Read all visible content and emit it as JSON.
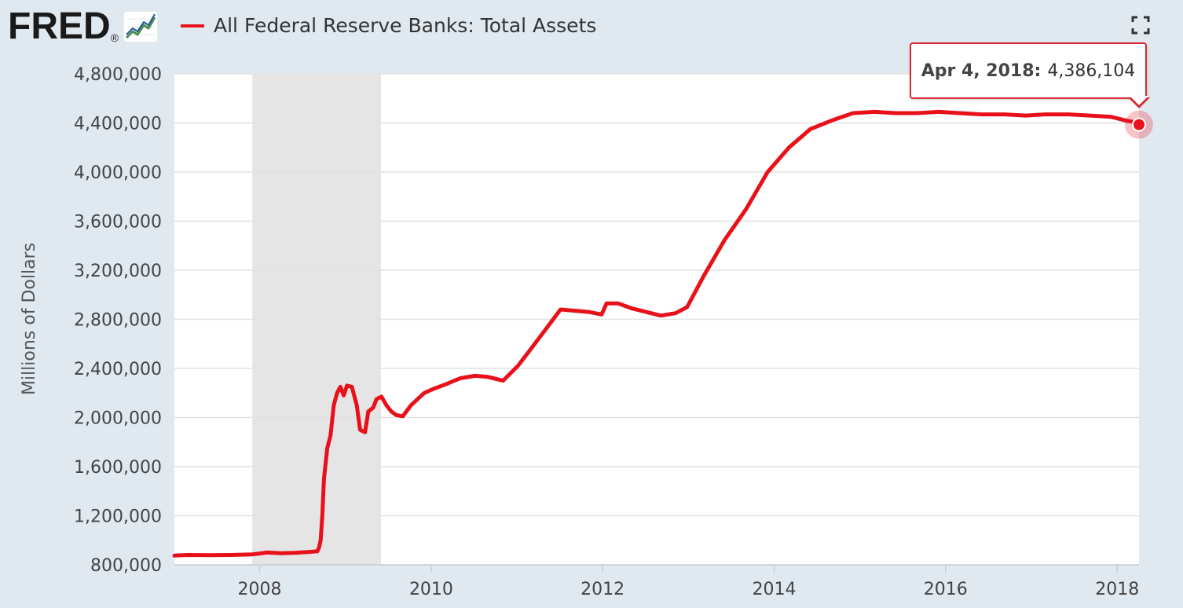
{
  "header": {
    "logo_text": "FRED",
    "logo_registered": "®",
    "legend_label": "All Federal Reserve Banks: Total Assets"
  },
  "tooltip": {
    "date": "Apr 4, 2018:",
    "value": "4,386,104"
  },
  "colors": {
    "series": "#e8111a",
    "recession": "#e5e5e5",
    "background": "#e1e9f0",
    "plot_bg": "#ffffff",
    "grid": "#e2e2e2"
  },
  "chart_data": {
    "type": "line",
    "ylabel": "Millions of Dollars",
    "ylim": [
      800000,
      4800000
    ],
    "yticks": [
      800000,
      1200000,
      1600000,
      2000000,
      2400000,
      2800000,
      3200000,
      3600000,
      4000000,
      4400000,
      4800000
    ],
    "ytick_labels": [
      "800,000",
      "1,200,000",
      "1,600,000",
      "2,000,000",
      "2,400,000",
      "2,800,000",
      "3,200,000",
      "3,600,000",
      "4,000,000",
      "4,400,000",
      "4,800,000"
    ],
    "xlim": [
      "2007-01-03",
      "2018-04-04"
    ],
    "xticks": [
      "2008-01-01",
      "2010-01-01",
      "2012-01-01",
      "2014-01-01",
      "2016-01-01",
      "2018-01-01"
    ],
    "xtick_labels": [
      "2008",
      "2010",
      "2012",
      "2014",
      "2016",
      "2018"
    ],
    "grid": true,
    "recessions": [
      {
        "start": "2007-12-01",
        "end": "2009-06-01"
      }
    ],
    "series": [
      {
        "name": "All Federal Reserve Banks: Total Assets",
        "points": [
          [
            "2007-01-03",
            875000
          ],
          [
            "2007-03-01",
            880000
          ],
          [
            "2007-06-01",
            878000
          ],
          [
            "2007-09-01",
            880000
          ],
          [
            "2007-12-01",
            885000
          ],
          [
            "2008-01-01",
            892000
          ],
          [
            "2008-02-01",
            900000
          ],
          [
            "2008-04-01",
            895000
          ],
          [
            "2008-06-01",
            898000
          ],
          [
            "2008-08-01",
            905000
          ],
          [
            "2008-09-03",
            910000
          ],
          [
            "2008-09-10",
            940000
          ],
          [
            "2008-09-17",
            1000000
          ],
          [
            "2008-09-24",
            1200000
          ],
          [
            "2008-10-01",
            1500000
          ],
          [
            "2008-10-15",
            1750000
          ],
          [
            "2008-10-29",
            1850000
          ],
          [
            "2008-11-12",
            2100000
          ],
          [
            "2008-11-26",
            2200000
          ],
          [
            "2008-12-10",
            2250000
          ],
          [
            "2008-12-24",
            2180000
          ],
          [
            "2009-01-07",
            2260000
          ],
          [
            "2009-01-28",
            2250000
          ],
          [
            "2009-02-18",
            2100000
          ],
          [
            "2009-03-04",
            1900000
          ],
          [
            "2009-03-25",
            1880000
          ],
          [
            "2009-04-08",
            2050000
          ],
          [
            "2009-04-29",
            2080000
          ],
          [
            "2009-05-13",
            2150000
          ],
          [
            "2009-06-03",
            2170000
          ],
          [
            "2009-06-24",
            2100000
          ],
          [
            "2009-07-15",
            2050000
          ],
          [
            "2009-08-05",
            2020000
          ],
          [
            "2009-09-02",
            2010000
          ],
          [
            "2009-10-07",
            2100000
          ],
          [
            "2009-11-04",
            2150000
          ],
          [
            "2009-12-02",
            2200000
          ],
          [
            "2010-01-06",
            2230000
          ],
          [
            "2010-03-03",
            2270000
          ],
          [
            "2010-05-05",
            2320000
          ],
          [
            "2010-07-07",
            2340000
          ],
          [
            "2010-09-01",
            2330000
          ],
          [
            "2010-11-03",
            2300000
          ],
          [
            "2011-01-05",
            2420000
          ],
          [
            "2011-03-02",
            2560000
          ],
          [
            "2011-05-04",
            2720000
          ],
          [
            "2011-07-06",
            2880000
          ],
          [
            "2011-09-07",
            2870000
          ],
          [
            "2011-11-02",
            2860000
          ],
          [
            "2011-12-28",
            2840000
          ],
          [
            "2012-01-18",
            2930000
          ],
          [
            "2012-03-07",
            2930000
          ],
          [
            "2012-05-02",
            2890000
          ],
          [
            "2012-07-04",
            2860000
          ],
          [
            "2012-09-05",
            2830000
          ],
          [
            "2012-11-07",
            2850000
          ],
          [
            "2012-12-26",
            2900000
          ],
          [
            "2013-03-06",
            3150000
          ],
          [
            "2013-06-05",
            3450000
          ],
          [
            "2013-09-04",
            3700000
          ],
          [
            "2013-12-04",
            4000000
          ],
          [
            "2014-03-05",
            4200000
          ],
          [
            "2014-06-04",
            4350000
          ],
          [
            "2014-09-03",
            4420000
          ],
          [
            "2014-12-03",
            4480000
          ],
          [
            "2015-03-04",
            4490000
          ],
          [
            "2015-06-03",
            4480000
          ],
          [
            "2015-09-02",
            4480000
          ],
          [
            "2015-12-02",
            4490000
          ],
          [
            "2016-03-02",
            4480000
          ],
          [
            "2016-06-01",
            4470000
          ],
          [
            "2016-09-07",
            4470000
          ],
          [
            "2016-12-07",
            4460000
          ],
          [
            "2017-03-01",
            4470000
          ],
          [
            "2017-06-07",
            4470000
          ],
          [
            "2017-09-06",
            4460000
          ],
          [
            "2017-12-06",
            4450000
          ],
          [
            "2018-02-07",
            4420000
          ],
          [
            "2018-03-07",
            4410000
          ],
          [
            "2018-04-04",
            4386104
          ]
        ]
      }
    ]
  }
}
